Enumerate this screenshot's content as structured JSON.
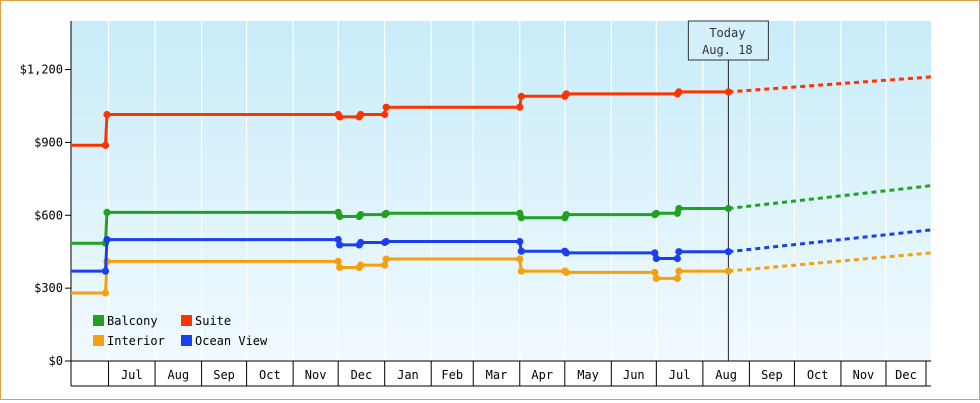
{
  "chart_data": {
    "type": "line",
    "title": "",
    "xlabel": "",
    "ylabel": "",
    "x_unit": "date",
    "x_range": [
      "2014-06-06",
      "2015-12-31"
    ],
    "month_labels": [
      "Jul",
      "Aug",
      "Sep",
      "Oct",
      "Nov",
      "Dec",
      "Jan",
      "Feb",
      "Mar",
      "Apr",
      "May",
      "Jun",
      "Jul",
      "Aug",
      "Sep",
      "Oct",
      "Nov",
      "Dec"
    ],
    "month_starts": [
      "2014-07-01",
      "2014-08-01",
      "2014-09-01",
      "2014-10-01",
      "2014-11-01",
      "2014-12-01",
      "2015-01-01",
      "2015-02-01",
      "2015-03-01",
      "2015-04-01",
      "2015-05-01",
      "2015-06-01",
      "2015-07-01",
      "2015-08-01",
      "2015-09-01",
      "2015-10-01",
      "2015-11-01",
      "2015-12-01",
      "2016-01-01"
    ],
    "ylim": [
      0,
      1400
    ],
    "y_ticks": [
      0,
      300,
      600,
      900,
      1200
    ],
    "y_tick_labels": [
      "$0",
      "$300",
      "$600",
      "$900",
      "$1,200"
    ],
    "grid": true,
    "legend_position": "bottom-left",
    "today": {
      "label_line1": "Today",
      "label_line2": "Aug. 18",
      "date": "2015-08-18"
    },
    "series": [
      {
        "name": "Balcony",
        "color": "#22a022",
        "points": [
          [
            "2014-06-06",
            485
          ],
          [
            "2014-06-29",
            485
          ],
          [
            "2014-06-30",
            612
          ],
          [
            "2014-12-01",
            612
          ],
          [
            "2014-12-02",
            595
          ],
          [
            "2014-12-15",
            595
          ],
          [
            "2014-12-16",
            603
          ],
          [
            "2015-01-01",
            603
          ],
          [
            "2015-01-02",
            608
          ],
          [
            "2015-04-01",
            608
          ],
          [
            "2015-04-02",
            590
          ],
          [
            "2015-05-01",
            590
          ],
          [
            "2015-05-02",
            603
          ],
          [
            "2015-06-30",
            603
          ],
          [
            "2015-07-01",
            608
          ],
          [
            "2015-07-15",
            608
          ],
          [
            "2015-07-16",
            628
          ],
          [
            "2015-08-18",
            628
          ]
        ],
        "forecast": [
          [
            "2015-08-18",
            628
          ],
          [
            "2015-12-31",
            722
          ]
        ]
      },
      {
        "name": "Suite",
        "color": "#ff3300",
        "points": [
          [
            "2014-06-06",
            888
          ],
          [
            "2014-06-29",
            888
          ],
          [
            "2014-06-30",
            1015
          ],
          [
            "2014-12-01",
            1015
          ],
          [
            "2014-12-02",
            1005
          ],
          [
            "2014-12-15",
            1005
          ],
          [
            "2014-12-16",
            1015
          ],
          [
            "2015-01-01",
            1015
          ],
          [
            "2015-01-02",
            1045
          ],
          [
            "2015-04-01",
            1045
          ],
          [
            "2015-04-02",
            1090
          ],
          [
            "2015-05-01",
            1090
          ],
          [
            "2015-05-02",
            1100
          ],
          [
            "2015-07-15",
            1100
          ],
          [
            "2015-07-16",
            1108
          ],
          [
            "2015-08-18",
            1108
          ]
        ],
        "forecast": [
          [
            "2015-08-18",
            1108
          ],
          [
            "2015-12-31",
            1170
          ]
        ]
      },
      {
        "name": "Interior",
        "color": "#f5a010",
        "points": [
          [
            "2014-06-06",
            280
          ],
          [
            "2014-06-29",
            280
          ],
          [
            "2014-06-30",
            410
          ],
          [
            "2014-12-01",
            410
          ],
          [
            "2014-12-02",
            385
          ],
          [
            "2014-12-15",
            385
          ],
          [
            "2014-12-16",
            395
          ],
          [
            "2015-01-01",
            395
          ],
          [
            "2015-01-02",
            420
          ],
          [
            "2015-04-01",
            420
          ],
          [
            "2015-04-02",
            370
          ],
          [
            "2015-05-01",
            370
          ],
          [
            "2015-05-02",
            365
          ],
          [
            "2015-06-30",
            365
          ],
          [
            "2015-07-01",
            340
          ],
          [
            "2015-07-15",
            340
          ],
          [
            "2015-07-16",
            370
          ],
          [
            "2015-08-18",
            370
          ]
        ],
        "forecast": [
          [
            "2015-08-18",
            370
          ],
          [
            "2015-12-31",
            445
          ]
        ]
      },
      {
        "name": "Ocean View",
        "color": "#1a3ff0",
        "points": [
          [
            "2014-06-06",
            370
          ],
          [
            "2014-06-29",
            370
          ],
          [
            "2014-06-30",
            500
          ],
          [
            "2014-12-01",
            500
          ],
          [
            "2014-12-02",
            478
          ],
          [
            "2014-12-15",
            478
          ],
          [
            "2014-12-16",
            488
          ],
          [
            "2015-01-01",
            488
          ],
          [
            "2015-01-02",
            492
          ],
          [
            "2015-04-01",
            492
          ],
          [
            "2015-04-02",
            452
          ],
          [
            "2015-05-01",
            452
          ],
          [
            "2015-05-02",
            445
          ],
          [
            "2015-06-30",
            445
          ],
          [
            "2015-07-01",
            422
          ],
          [
            "2015-07-15",
            422
          ],
          [
            "2015-07-16",
            450
          ],
          [
            "2015-08-18",
            450
          ]
        ],
        "forecast": [
          [
            "2015-08-18",
            450
          ],
          [
            "2015-12-31",
            540
          ]
        ]
      }
    ]
  }
}
